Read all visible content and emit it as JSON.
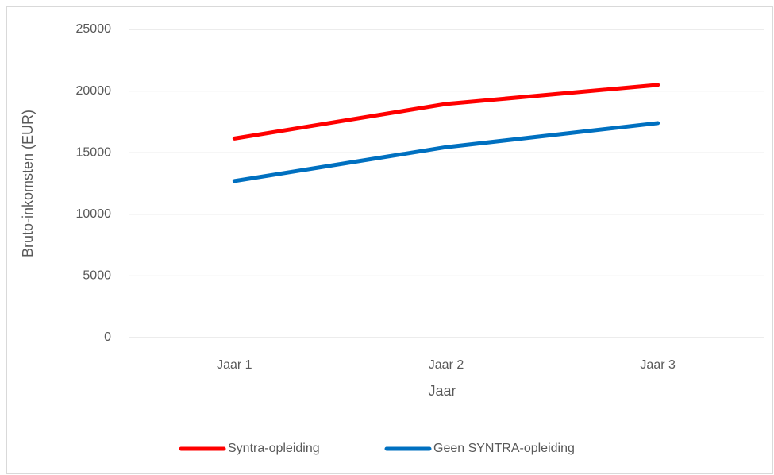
{
  "chart_data": {
    "type": "line",
    "xlabel": "Jaar",
    "ylabel": "Bruto-inkomsten (EUR)",
    "categories": [
      "Jaar 1",
      "Jaar 2",
      "Jaar 3"
    ],
    "series": [
      {
        "name": "Syntra-opleiding",
        "color": "#ff0000",
        "values": [
          16150,
          18950,
          20500
        ]
      },
      {
        "name": "Geen SYNTRA-opleiding",
        "color": "#0070c0",
        "values": [
          12700,
          15450,
          17400
        ]
      }
    ],
    "ylim": [
      0,
      25000
    ],
    "yticks": [
      0,
      5000,
      10000,
      15000,
      20000,
      25000
    ],
    "grid": true,
    "legend": "bottom"
  }
}
